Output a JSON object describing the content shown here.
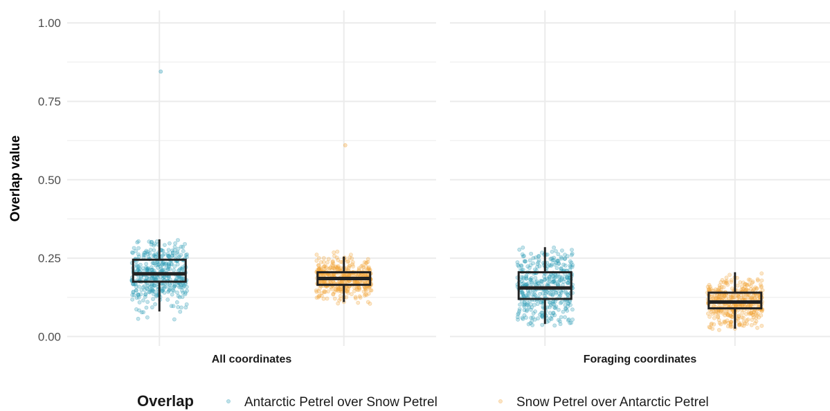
{
  "chart_data": {
    "type": "boxplot",
    "title": "",
    "xlabel": "",
    "ylabel": "Overlap value",
    "ylim": [
      -0.03,
      1.04
    ],
    "yticks": [
      "0.00",
      "0.25",
      "0.50",
      "0.75",
      "1.00"
    ],
    "grid": true,
    "facets": [
      "All coordinates",
      "Foraging coordinates"
    ],
    "legend": {
      "title": "Overlap",
      "position": "bottom",
      "entries": [
        "Antarctic Petrel over Snow Petrel",
        "Snow Petrel over Antarctic Petrel"
      ]
    },
    "colors": {
      "Antarctic Petrel over Snow Petrel": "#2a9bb5",
      "Snow Petrel over Antarctic Petrel": "#f1a43a",
      "box": "#222222",
      "grid": "#ebebeb"
    },
    "series": [
      {
        "name": "Antarctic Petrel over Snow Petrel",
        "boxes": [
          {
            "facet": "All coordinates",
            "whisker_low": 0.08,
            "q1": 0.175,
            "median": 0.2,
            "q3": 0.245,
            "whisker_high": 0.31,
            "range": [
              0.045,
              0.31
            ],
            "outliers": [
              0.845
            ]
          },
          {
            "facet": "Foraging coordinates",
            "whisker_low": 0.04,
            "q1": 0.12,
            "median": 0.155,
            "q3": 0.205,
            "whisker_high": 0.285,
            "range": [
              0.035,
              0.285
            ],
            "outliers": []
          }
        ]
      },
      {
        "name": "Snow Petrel over Antarctic Petrel",
        "boxes": [
          {
            "facet": "All coordinates",
            "whisker_low": 0.11,
            "q1": 0.165,
            "median": 0.185,
            "q3": 0.205,
            "whisker_high": 0.255,
            "range": [
              0.035,
              0.28
            ],
            "outliers": [
              0.61
            ]
          },
          {
            "facet": "Foraging coordinates",
            "whisker_low": 0.025,
            "q1": 0.09,
            "median": 0.11,
            "q3": 0.14,
            "whisker_high": 0.205,
            "range": [
              0.02,
              0.205
            ],
            "outliers": []
          }
        ]
      }
    ]
  }
}
